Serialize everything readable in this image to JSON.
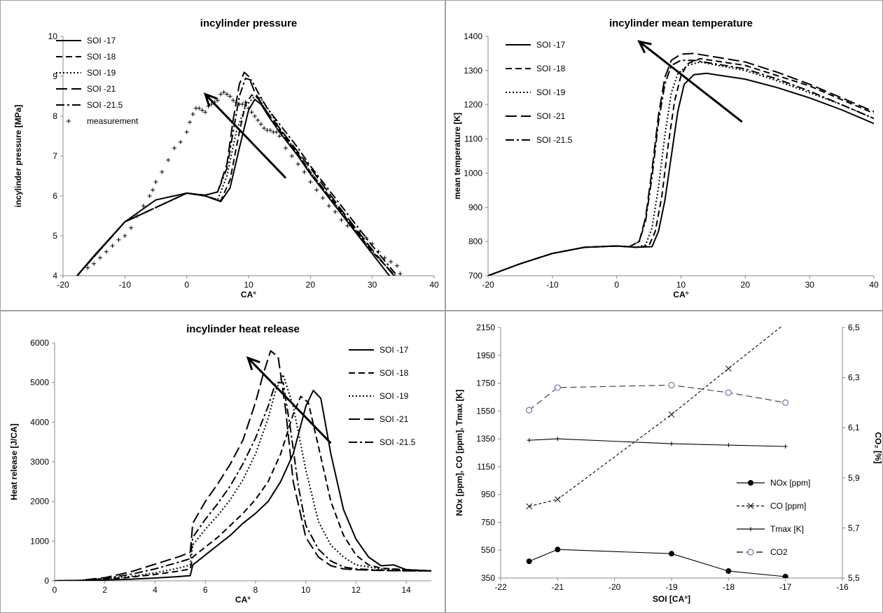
{
  "chart_data": [
    {
      "type": "line",
      "title": "incylinder pressure",
      "xlabel": "CA°",
      "ylabel": "incylinder pressure [MPa]",
      "xlim": [
        -20,
        40
      ],
      "ylim": [
        4,
        10
      ],
      "xticks": [
        "-20",
        "-10",
        "0",
        "10",
        "20",
        "30",
        "40"
      ],
      "yticks": [
        "4",
        "5",
        "6",
        "7",
        "8",
        "9",
        "10"
      ],
      "legend_position": "top-left",
      "arrow": {
        "from": [
          16,
          6.45
        ],
        "to": [
          3,
          8.55
        ]
      },
      "series": [
        {
          "name": "SOI -17",
          "dash": "solid",
          "x": [
            -18,
            -15,
            -10,
            -5,
            0,
            3,
            5.5,
            7,
            8.5,
            10,
            11,
            12,
            13,
            15,
            18,
            20,
            25,
            30,
            33
          ],
          "y": [
            3.95,
            4.5,
            5.35,
            5.9,
            6.07,
            6.0,
            5.86,
            6.2,
            7.2,
            8.15,
            8.42,
            8.3,
            8.05,
            7.6,
            7.0,
            6.55,
            5.55,
            4.55,
            3.95
          ]
        },
        {
          "name": "SOI -18",
          "dash": "dash",
          "x": [
            -18,
            -10,
            0,
            3,
            5.5,
            7,
            8.5,
            9.5,
            10.5,
            11.5,
            13,
            15,
            18,
            20,
            25,
            30,
            34
          ],
          "y": [
            3.95,
            5.35,
            6.07,
            6.0,
            5.88,
            6.4,
            7.6,
            8.3,
            8.53,
            8.45,
            8.1,
            7.65,
            7.05,
            6.6,
            5.6,
            4.6,
            3.95
          ]
        },
        {
          "name": "SOI -19",
          "dash": "dot",
          "x": [
            -18,
            -10,
            0,
            3,
            5,
            6.5,
            8,
            9.5,
            11,
            12,
            13.5,
            15,
            18,
            20,
            25,
            30,
            34
          ],
          "y": [
            3.95,
            5.35,
            6.07,
            6.0,
            5.9,
            6.5,
            7.6,
            8.25,
            8.5,
            8.45,
            8.1,
            7.7,
            7.05,
            6.6,
            5.6,
            4.6,
            3.95
          ]
        },
        {
          "name": "SOI -21",
          "dash": "longdash",
          "x": [
            -18,
            -10,
            0,
            3,
            5,
            6.5,
            7.5,
            8.5,
            9.3,
            10,
            11,
            13,
            15,
            18,
            20,
            25,
            30,
            33.5
          ],
          "y": [
            3.95,
            5.35,
            6.07,
            6.02,
            6.1,
            6.8,
            7.9,
            8.8,
            9.1,
            9.0,
            8.6,
            8.1,
            7.7,
            7.1,
            6.7,
            5.65,
            4.65,
            4.0
          ]
        },
        {
          "name": "SOI -21.5",
          "dash": "dashdot",
          "x": [
            -18,
            -10,
            0,
            3,
            5,
            6.5,
            7.5,
            8.5,
            9.5,
            10.5,
            11.5,
            13,
            15,
            18,
            20,
            25,
            30,
            34
          ],
          "y": [
            3.95,
            5.35,
            6.07,
            6.02,
            6.1,
            6.7,
            7.6,
            8.5,
            8.95,
            8.9,
            8.6,
            8.2,
            7.8,
            7.2,
            6.75,
            5.75,
            4.75,
            4.0
          ]
        },
        {
          "name": "measurement",
          "marker": "plus",
          "x": [
            -17.5,
            -16,
            -15,
            -14,
            -13,
            -12,
            -11,
            -10,
            -9,
            -8,
            -7,
            -6,
            -5.5,
            -5,
            -4,
            -3,
            -2,
            -1,
            0,
            0.5,
            1,
            1.5,
            2,
            2.5,
            3,
            3.5,
            4,
            4.5,
            5,
            5.5,
            6,
            6.5,
            7,
            7.5,
            8,
            8.5,
            9,
            9.5,
            10,
            10.5,
            11,
            11.5,
            12,
            12.5,
            13,
            13.5,
            14,
            14.5,
            15,
            16,
            17,
            18,
            19,
            20,
            21,
            22,
            23,
            24,
            25,
            26,
            27,
            28,
            29,
            30,
            31,
            32,
            33,
            34,
            34.5
          ],
          "y": [
            4.0,
            4.2,
            4.3,
            4.45,
            4.6,
            4.75,
            4.9,
            5.0,
            5.2,
            5.5,
            5.75,
            6.0,
            6.15,
            6.35,
            6.6,
            6.9,
            7.2,
            7.35,
            7.6,
            7.85,
            8.05,
            8.2,
            8.2,
            8.15,
            8.1,
            8.25,
            8.3,
            8.35,
            8.4,
            8.55,
            8.6,
            8.55,
            8.5,
            8.4,
            8.35,
            8.3,
            8.3,
            8.35,
            8.2,
            8.1,
            8.0,
            7.9,
            7.8,
            7.7,
            7.65,
            7.65,
            7.6,
            7.6,
            7.5,
            7.2,
            7.0,
            6.8,
            6.6,
            6.35,
            6.15,
            5.95,
            5.75,
            5.6,
            5.4,
            5.25,
            5.2,
            5.1,
            4.95,
            4.8,
            4.6,
            4.45,
            4.35,
            4.25,
            4.05
          ]
        }
      ]
    },
    {
      "type": "line",
      "title": "incylinder mean temperature",
      "xlabel": "CA°",
      "ylabel": "mean temperature [K]",
      "xlim": [
        -20,
        40
      ],
      "ylim": [
        700,
        1400
      ],
      "xticks": [
        "-20",
        "-10",
        "0",
        "10",
        "20",
        "30",
        "40"
      ],
      "yticks": [
        "700",
        "800",
        "900",
        "1000",
        "1100",
        "1200",
        "1300",
        "1400"
      ],
      "legend_position": "top-left",
      "arrow": {
        "from": [
          19.5,
          1150
        ],
        "to": [
          3.5,
          1385
        ]
      },
      "series": [
        {
          "name": "SOI -17",
          "dash": "solid",
          "x": [
            -20,
            -15,
            -10,
            -5,
            0,
            3,
            5.5,
            6.5,
            7.5,
            8.5,
            9.5,
            10.5,
            12,
            14,
            20,
            25,
            30,
            35,
            40
          ],
          "y": [
            700,
            735,
            765,
            783,
            787,
            783,
            785,
            830,
            920,
            1050,
            1180,
            1260,
            1288,
            1292,
            1275,
            1250,
            1220,
            1185,
            1145
          ]
        },
        {
          "name": "SOI -18",
          "dash": "dash",
          "x": [
            -20,
            -15,
            -10,
            -5,
            0,
            3,
            5,
            6,
            7,
            8,
            9,
            10,
            11,
            13,
            20,
            25,
            30,
            35,
            40
          ],
          "y": [
            700,
            735,
            765,
            783,
            787,
            783,
            787,
            830,
            930,
            1080,
            1210,
            1285,
            1320,
            1335,
            1315,
            1285,
            1255,
            1215,
            1175
          ]
        },
        {
          "name": "SOI -19",
          "dash": "dot",
          "x": [
            -20,
            -15,
            -10,
            -5,
            0,
            3,
            4.5,
            5.5,
            6.5,
            7.5,
            8.5,
            9.5,
            11,
            13,
            20,
            25,
            30,
            35,
            40
          ],
          "y": [
            700,
            735,
            765,
            783,
            787,
            783,
            790,
            840,
            960,
            1110,
            1235,
            1290,
            1315,
            1325,
            1300,
            1270,
            1235,
            1200,
            1160
          ]
        },
        {
          "name": "SOI -21",
          "dash": "longdash",
          "x": [
            -20,
            -15,
            -10,
            -5,
            0,
            2,
            3.5,
            4.5,
            5.5,
            6.5,
            7.5,
            8.5,
            10,
            12,
            20,
            25,
            30,
            35,
            40
          ],
          "y": [
            700,
            735,
            765,
            783,
            787,
            785,
            800,
            870,
            1010,
            1170,
            1280,
            1330,
            1348,
            1350,
            1325,
            1295,
            1260,
            1220,
            1180
          ]
        },
        {
          "name": "SOI -21.5",
          "dash": "dashdot",
          "x": [
            -20,
            -15,
            -10,
            -5,
            0,
            2,
            3.5,
            4.5,
            5.5,
            6.5,
            7.5,
            8.5,
            10,
            12,
            20,
            25,
            30,
            35,
            40
          ],
          "y": [
            700,
            735,
            765,
            783,
            787,
            785,
            800,
            860,
            990,
            1150,
            1260,
            1315,
            1330,
            1330,
            1305,
            1275,
            1240,
            1200,
            1160
          ]
        }
      ]
    },
    {
      "type": "line",
      "title": "incylinder heat release",
      "xlabel": "CA°",
      "ylabel": "Heat release [J/CA]",
      "xlim": [
        0,
        15
      ],
      "ylim": [
        0,
        6000
      ],
      "xticks": [
        "0",
        "2",
        "4",
        "6",
        "8",
        "10",
        "12",
        "14"
      ],
      "yticks": [
        "0",
        "1000",
        "2000",
        "3000",
        "4000",
        "5000",
        "6000"
      ],
      "legend_position": "top-right",
      "arrow": {
        "from": [
          11,
          3470
        ],
        "to": [
          7.7,
          5620
        ]
      },
      "series": [
        {
          "name": "SOI -17",
          "dash": "solid",
          "x": [
            0,
            1,
            2,
            3,
            4,
            5,
            5.4,
            5.5,
            6,
            6.5,
            7,
            7.5,
            8,
            8.5,
            9,
            9.5,
            10,
            10.3,
            10.6,
            11,
            11.5,
            12,
            12.5,
            13,
            13.5,
            14,
            15
          ],
          "y": [
            0,
            5,
            20,
            40,
            70,
            110,
            130,
            400,
            650,
            900,
            1150,
            1450,
            1700,
            2000,
            2500,
            3200,
            4400,
            4800,
            4600,
            3200,
            1800,
            1050,
            600,
            380,
            400,
            280,
            250
          ]
        },
        {
          "name": "SOI -18",
          "dash": "dash",
          "x": [
            0,
            1,
            2,
            3,
            4,
            5,
            5.4,
            5.5,
            6,
            6.5,
            7,
            7.5,
            8,
            8.5,
            9,
            9.5,
            9.8,
            10.1,
            10.5,
            11,
            11.5,
            12,
            12.5,
            13,
            14,
            15
          ],
          "y": [
            0,
            10,
            40,
            90,
            160,
            250,
            300,
            600,
            850,
            1100,
            1400,
            1700,
            2050,
            2500,
            3200,
            4200,
            4650,
            4500,
            3400,
            2000,
            1150,
            650,
            400,
            320,
            280,
            250
          ]
        },
        {
          "name": "SOI -19",
          "dash": "dot",
          "x": [
            0,
            1,
            2,
            3,
            4,
            5,
            5.4,
            5.5,
            6,
            6.5,
            7,
            7.5,
            8,
            8.5,
            8.8,
            9.1,
            9.5,
            10,
            10.5,
            11,
            11.5,
            12,
            13,
            14,
            15
          ],
          "y": [
            0,
            10,
            50,
            110,
            200,
            330,
            400,
            900,
            1300,
            1650,
            2050,
            2550,
            3200,
            4100,
            4800,
            5200,
            4400,
            2800,
            1500,
            900,
            600,
            400,
            300,
            280,
            250
          ]
        },
        {
          "name": "SOI -21",
          "dash": "longdash",
          "x": [
            0,
            1,
            2,
            3,
            4,
            5,
            5.4,
            5.5,
            6,
            6.5,
            7,
            7.5,
            8,
            8.3,
            8.6,
            8.9,
            9.2,
            9.5,
            10,
            10.5,
            11,
            11.5,
            12,
            13,
            14,
            15
          ],
          "y": [
            0,
            10,
            80,
            220,
            420,
            620,
            720,
            1450,
            2000,
            2450,
            2950,
            3550,
            4500,
            5200,
            5800,
            5650,
            4300,
            2500,
            1100,
            600,
            380,
            300,
            280,
            260,
            250,
            250
          ]
        },
        {
          "name": "SOI -21.5",
          "dash": "dashdot",
          "x": [
            0,
            1,
            2,
            3,
            4,
            5,
            5.4,
            5.5,
            6,
            6.5,
            7,
            7.5,
            8,
            8.5,
            8.8,
            9.1,
            9.4,
            9.7,
            10,
            10.5,
            11,
            11.5,
            12,
            13,
            14,
            15
          ],
          "y": [
            0,
            10,
            60,
            160,
            300,
            480,
            560,
            1100,
            1550,
            1950,
            2400,
            2950,
            3600,
            4400,
            5000,
            5000,
            3800,
            2400,
            1400,
            800,
            500,
            350,
            300,
            270,
            250,
            250
          ]
        }
      ]
    },
    {
      "type": "line",
      "title": "",
      "xlabel": "SOI [CA°]",
      "ylabel": "NOx [ppm], CO [ppm], Tmax [K]",
      "ylabel_right": "CO₂ [%]",
      "xlim": [
        -22,
        -16
      ],
      "ylim": [
        350,
        2150
      ],
      "ylim_right": [
        5.5,
        6.5
      ],
      "xticks": [
        "-22",
        "-21",
        "-20",
        "-19",
        "-18",
        "-17",
        "-16"
      ],
      "yticks": [
        "350",
        "550",
        "750",
        "950",
        "1150",
        "1350",
        "1550",
        "1750",
        "1950",
        "2150"
      ],
      "yticks_right": [
        "5,5",
        "5,7",
        "5,9",
        "6,1",
        "6,3",
        "6,5"
      ],
      "legend_position": "bottom-right",
      "series": [
        {
          "name": "NOx [ppm]",
          "dash": "solid",
          "marker": "filled-circle",
          "axis": "left",
          "x": [
            -21.5,
            -21,
            -19,
            -18,
            -17
          ],
          "y": [
            470,
            555,
            525,
            400,
            360
          ]
        },
        {
          "name": "CO [ppm]",
          "dash": "shortdash",
          "marker": "x",
          "axis": "left",
          "x": [
            -21.5,
            -21,
            -19,
            -18,
            -17
          ],
          "y": [
            865,
            915,
            1525,
            1855,
            2180
          ]
        },
        {
          "name": "Tmax [K]",
          "dash": "solid",
          "marker": "plus",
          "axis": "left",
          "x": [
            -21.5,
            -21,
            -19,
            -18,
            -17
          ],
          "y": [
            1340,
            1350,
            1315,
            1305,
            1295
          ]
        },
        {
          "name": "CO2",
          "dash": "dash",
          "marker": "open-circle",
          "axis": "right",
          "x": [
            -21.5,
            -21,
            -19,
            -18,
            -17
          ],
          "y": [
            6.17,
            6.26,
            6.27,
            6.24,
            6.2
          ]
        }
      ]
    }
  ],
  "colors": {
    "line": "#000000",
    "co2_marker": "#7070a8",
    "frame": "#a0a0a0"
  }
}
